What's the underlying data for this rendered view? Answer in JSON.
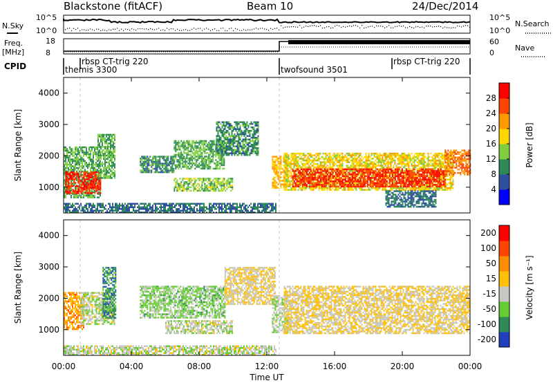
{
  "header": {
    "station": "Blackstone (fitACF)",
    "beam": "Beam 10",
    "date": "24/Dec/2014"
  },
  "top_panels": {
    "nsky_label": "N.Sky",
    "nsky_ticks": [
      "10^5",
      "10^0"
    ],
    "nsearch_label": "N.Search",
    "nsearch_ticks": [
      "10^5",
      "10^0"
    ],
    "freq_label": "Freq.",
    "freq_unit": "[MHz]",
    "freq_ticks": [
      "18",
      "8"
    ],
    "nave_label": "Nave",
    "nave_ticks": [
      "60",
      "0"
    ],
    "cpid_label": "CPID",
    "cpid_entries": [
      {
        "label": "rbsp CT-trig 220",
        "start_hour": 1.0
      },
      {
        "label": "themis 3300",
        "start_hour": 0.0
      },
      {
        "label": "twofsound 3501",
        "start_hour": 12.9
      },
      {
        "label": "rbsp CT-trig 220",
        "start_hour": 19.0
      }
    ]
  },
  "chart_data": [
    {
      "type": "heatmap",
      "name": "power",
      "ylabel": "Slant Range [km]",
      "yticks": [
        "1000",
        "2000",
        "3000",
        "4000"
      ],
      "ylim": [
        180,
        4500
      ],
      "xlim": [
        0,
        24
      ],
      "colorbar": {
        "label": "Power [dB]",
        "ticks": [
          "4",
          "8",
          "12",
          "16",
          "20",
          "24",
          "28"
        ],
        "range": [
          0,
          32
        ],
        "colors": [
          "#0000ff",
          "#2f4f9f",
          "#2e8b57",
          "#7fcf3f",
          "#ffd700",
          "#ff9900",
          "#ff4500",
          "#ff0000"
        ]
      },
      "regions": [
        {
          "t0": 0.0,
          "t1": 2.2,
          "r0": 700,
          "r1": 2300,
          "level": 12
        },
        {
          "t0": 0.1,
          "t1": 2.2,
          "r0": 800,
          "r1": 1500,
          "level": 28
        },
        {
          "t0": 2.0,
          "t1": 3.0,
          "r0": 1300,
          "r1": 2700,
          "level": 12
        },
        {
          "t0": 4.5,
          "t1": 6.5,
          "r0": 1500,
          "r1": 2000,
          "level": 10
        },
        {
          "t0": 6.5,
          "t1": 9.5,
          "r0": 1600,
          "r1": 2500,
          "level": 12
        },
        {
          "t0": 6.5,
          "t1": 10.0,
          "r0": 900,
          "r1": 1300,
          "level": 14
        },
        {
          "t0": 9.0,
          "t1": 11.5,
          "r0": 2000,
          "r1": 3100,
          "level": 10
        },
        {
          "t0": 12.3,
          "t1": 13.2,
          "r0": 1000,
          "r1": 2000,
          "level": 20
        },
        {
          "t0": 13.0,
          "t1": 23.0,
          "r0": 900,
          "r1": 2100,
          "level": 18
        },
        {
          "t0": 13.5,
          "t1": 22.5,
          "r0": 1000,
          "r1": 1600,
          "level": 28
        },
        {
          "t0": 19.0,
          "t1": 22.0,
          "r0": 400,
          "r1": 900,
          "level": 8
        },
        {
          "t0": 22.5,
          "t1": 24.0,
          "r0": 1400,
          "r1": 2200,
          "level": 24
        },
        {
          "t0": 0.0,
          "t1": 12.5,
          "r0": 190,
          "r1": 500,
          "level": 8
        }
      ]
    },
    {
      "type": "heatmap",
      "name": "velocity",
      "ylabel": "Slant Range [km]",
      "yticks": [
        "1000",
        "2000",
        "3000",
        "4000"
      ],
      "ylim": [
        180,
        4500
      ],
      "xlim": [
        0,
        24
      ],
      "xlabel": "Time UT",
      "xticks": [
        "00:00",
        "04:00",
        "08:00",
        "12:00",
        "16:00",
        "20:00",
        "00:00"
      ],
      "colorbar": {
        "label": "Velocity [m s⁻¹]",
        "ticks": [
          "200",
          "100",
          "50",
          "15",
          "-15",
          "-50",
          "-100",
          "-200"
        ],
        "range": [
          -250,
          250
        ],
        "colors": [
          "#1f3fbf",
          "#2e8b57",
          "#66cc33",
          "#c8c8c0",
          "#ffc107",
          "#ff8c00",
          "#ff4500",
          "#ff0000"
        ]
      },
      "regions": [
        {
          "t0": 0.0,
          "t1": 1.2,
          "r0": 1000,
          "r1": 2200,
          "level": 75
        },
        {
          "t0": 1.0,
          "t1": 3.0,
          "r0": 1200,
          "r1": 2200,
          "level": -40
        },
        {
          "t0": 2.3,
          "t1": 3.1,
          "r0": 1400,
          "r1": 3000,
          "level": -150
        },
        {
          "t0": 4.5,
          "t1": 9.5,
          "r0": 1400,
          "r1": 2400,
          "level": -80
        },
        {
          "t0": 6.0,
          "t1": 10.0,
          "r0": 900,
          "r1": 1300,
          "level": -40
        },
        {
          "t0": 9.5,
          "t1": 12.5,
          "r0": 1800,
          "r1": 3000,
          "level": 0
        },
        {
          "t0": 12.3,
          "t1": 13.2,
          "r0": 900,
          "r1": 2100,
          "level": -50
        },
        {
          "t0": 13.0,
          "t1": 24.0,
          "r0": 900,
          "r1": 2400,
          "level": 0
        },
        {
          "t0": 0.0,
          "t1": 12.5,
          "r0": 190,
          "r1": 500,
          "level": -40
        }
      ]
    }
  ]
}
